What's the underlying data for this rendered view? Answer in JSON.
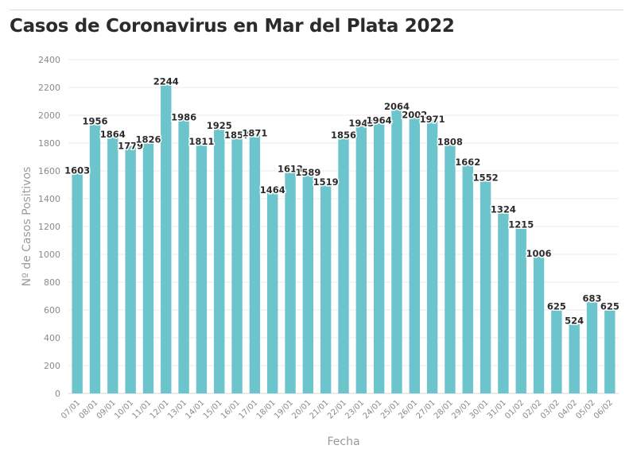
{
  "title": "Casos de Coronavirus en Mar del Plata 2022",
  "colors": {
    "bar": "#6cc5cc",
    "grid": "#ebebeb",
    "title": "#2b2b2b"
  },
  "chart_data": {
    "type": "bar",
    "title": "Casos de Coronavirus en Mar del Plata 2022",
    "xlabel": "Fecha",
    "ylabel": "Nº de Casos Positivos",
    "ylim": [
      0,
      2400
    ],
    "yticks": [
      0,
      200,
      400,
      600,
      800,
      1000,
      1200,
      1400,
      1600,
      1800,
      2000,
      2200,
      2400
    ],
    "grid": true,
    "categories": [
      "07/01",
      "08/01",
      "09/01",
      "10/01",
      "11/01",
      "12/01",
      "13/01",
      "14/01",
      "15/01",
      "16/01",
      "17/01",
      "18/01",
      "19/01",
      "20/01",
      "21/01",
      "22/01",
      "23/01",
      "24/01",
      "25/01",
      "26/01",
      "27/01",
      "28/01",
      "29/01",
      "30/01",
      "31/01",
      "01/02",
      "02/02",
      "03/02",
      "04/02",
      "05/02",
      "06/02"
    ],
    "values": [
      1603,
      1956,
      1864,
      1779,
      1826,
      2244,
      1986,
      1811,
      1925,
      1857,
      1871,
      1464,
      1613,
      1589,
      1519,
      1856,
      1943,
      1964,
      2064,
      2002,
      1971,
      1808,
      1662,
      1552,
      1324,
      1215,
      1006,
      625,
      524,
      683,
      625
    ]
  }
}
